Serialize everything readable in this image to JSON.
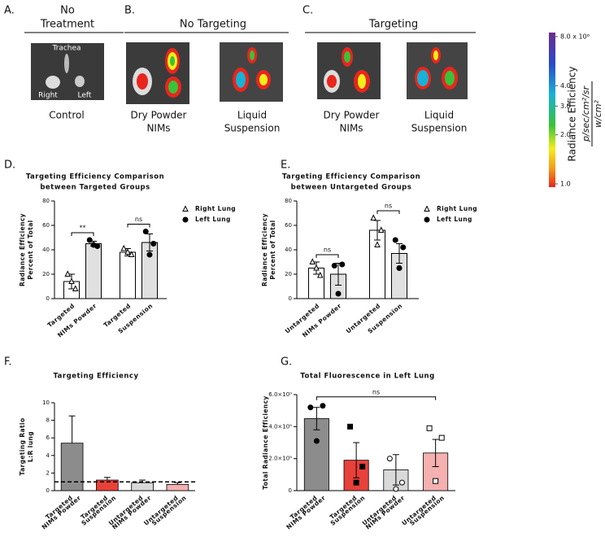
{
  "imaging": {
    "panels": [
      {
        "label": "A.",
        "heading": [
          "No",
          "Treatment"
        ],
        "images": [
          {
            "caption": [
              "Control"
            ],
            "annotations": [
              "Trachea",
              "Right",
              "Left"
            ]
          }
        ]
      },
      {
        "label": "B.",
        "heading": [
          "No Targeting"
        ],
        "images": [
          {
            "caption": [
              "Dry Powder",
              "NIMs"
            ]
          },
          {
            "caption": [
              "Liquid",
              "Suspension"
            ]
          }
        ]
      },
      {
        "label": "C.",
        "heading": [
          "Targeting"
        ],
        "images": [
          {
            "caption": [
              "Dry Powder",
              "NIMs"
            ]
          },
          {
            "caption": [
              "Liquid",
              "Suspension"
            ]
          }
        ]
      }
    ],
    "colorbar": {
      "title": "Radiance Efficiency",
      "unit_numerator": "p/sec/cm²/sr",
      "unit_denominator": "w/cm²",
      "scale": "log",
      "lim": [
        1000000,
        8000000
      ],
      "ticks": [
        {
          "value": 8000000,
          "label": "8.0 x 10⁶"
        },
        {
          "value": 4000000,
          "label": "4.0"
        },
        {
          "value": 3000000,
          "label": "3.0"
        },
        {
          "value": 2000000,
          "label": "2.0"
        },
        {
          "value": 1000000,
          "label": "1.0"
        }
      ]
    }
  },
  "chart_data": [
    {
      "type": "grouped_bar",
      "panel_label": "D.",
      "title": [
        "Targeting Efficiency Comparison",
        "between Targeted Groups"
      ],
      "ylabel": [
        "Radiance Efficiency",
        "Percent of Total"
      ],
      "categories": [
        [
          "Targeted",
          "NIMs Powder"
        ],
        [
          "Targeted",
          "Suspension"
        ]
      ],
      "series": [
        {
          "name": "Right Lung",
          "color": "#ffffff",
          "marker": "triangle-open",
          "values": [
            14,
            38
          ],
          "errors": [
            6,
            3
          ],
          "points": [
            [
              20,
              8,
              14
            ],
            [
              41,
              36,
              38
            ]
          ]
        },
        {
          "name": "Left Lung",
          "color": "#e0e0e0",
          "marker": "circle-filled",
          "values": [
            45,
            46
          ],
          "errors": [
            2,
            7
          ],
          "points": [
            [
              48,
              43,
              44
            ],
            [
              55,
              45,
              36
            ]
          ]
        }
      ],
      "ylim": [
        0,
        80
      ],
      "yticks": [
        0,
        20,
        40,
        60,
        80
      ],
      "annotations": [
        "**",
        "ns"
      ],
      "legend": "right"
    },
    {
      "type": "grouped_bar",
      "panel_label": "E.",
      "title": [
        "Targeting Efficiency Comparison",
        "between Untargeted Groups"
      ],
      "ylabel": [
        "Radiance Efficiency",
        "Percent of Total"
      ],
      "categories": [
        [
          "Untargeted",
          "NIMs Powder"
        ],
        [
          "Untargeted",
          "Suspension"
        ]
      ],
      "series": [
        {
          "name": "Right Lung",
          "color": "#ffffff",
          "marker": "triangle-open",
          "values": [
            25,
            56
          ],
          "errors": [
            5,
            8
          ],
          "points": [
            [
              30,
              19,
              25
            ],
            [
              66,
              56,
              44
            ]
          ]
        },
        {
          "name": "Left Lung",
          "color": "#e0e0e0",
          "marker": "circle-filled",
          "values": [
            20,
            37
          ],
          "errors": [
            9,
            8
          ],
          "points": [
            [
              27,
              28,
              4
            ],
            [
              48,
              42,
              25
            ]
          ]
        }
      ],
      "ylim": [
        0,
        80
      ],
      "yticks": [
        0,
        20,
        40,
        60,
        80
      ],
      "annotations": [
        "ns",
        "ns"
      ],
      "legend": "right"
    },
    {
      "type": "bar",
      "panel_label": "F.",
      "title": [
        "Targeting Efficiency"
      ],
      "ylabel": [
        "Targeting Ratio",
        "L:R lung"
      ],
      "categories": [
        [
          "Targeted",
          "NIMs Powder"
        ],
        [
          "Targeted",
          "Suspension"
        ],
        [
          "Untargeted",
          "NIMs Powder"
        ],
        [
          "Untargeted",
          "Suspension"
        ]
      ],
      "values": [
        5.4,
        1.2,
        0.9,
        0.7
      ],
      "errors": [
        3.1,
        0.3,
        0.3,
        0.2
      ],
      "error_direction": "up",
      "colors": [
        "#8c8c8c",
        "#e8413a",
        "#d9d9d9",
        "#f5b0b0"
      ],
      "reference_line": 1,
      "ylim": [
        0,
        10
      ],
      "yticks": [
        0,
        2,
        4,
        6,
        8,
        10
      ]
    },
    {
      "type": "bar",
      "panel_label": "G.",
      "title": [
        "Total Fluorescence in Left Lung"
      ],
      "ylabel": [
        "Total Radiance Efficiency"
      ],
      "categories": [
        [
          "Targeted",
          "NIMs Powder"
        ],
        [
          "Targeted",
          "Suspension"
        ],
        [
          "Untargeted",
          "NIMs Powder"
        ],
        [
          "Untargeted",
          "Suspension"
        ]
      ],
      "values": [
        4500000000,
        1900000000,
        1300000000,
        2350000000
      ],
      "errors": [
        700000000,
        1100000000,
        950000000,
        850000000
      ],
      "error_direction": "both",
      "colors": [
        "#8c8c8c",
        "#e8413a",
        "#d9d9d9",
        "#f5b0b0"
      ],
      "markers": [
        "circle-filled",
        "square-filled",
        "circle-open",
        "square-open"
      ],
      "points": [
        [
          5200000000,
          5300000000,
          3100000000
        ],
        [
          4000000000,
          1500000000,
          500000000
        ],
        [
          2000000000,
          500000000,
          100000000
        ],
        [
          3900000000,
          3300000000,
          600000000
        ]
      ],
      "annotations": [
        "ns"
      ],
      "ylim": [
        0,
        6000000000
      ],
      "yticks": [
        0,
        {
          "value": 2000000000,
          "label": "2.0×10⁹"
        },
        {
          "value": 4000000000,
          "label": "4.0×10⁹"
        },
        {
          "value": 6000000000,
          "label": "6.0×10⁹"
        }
      ]
    }
  ]
}
